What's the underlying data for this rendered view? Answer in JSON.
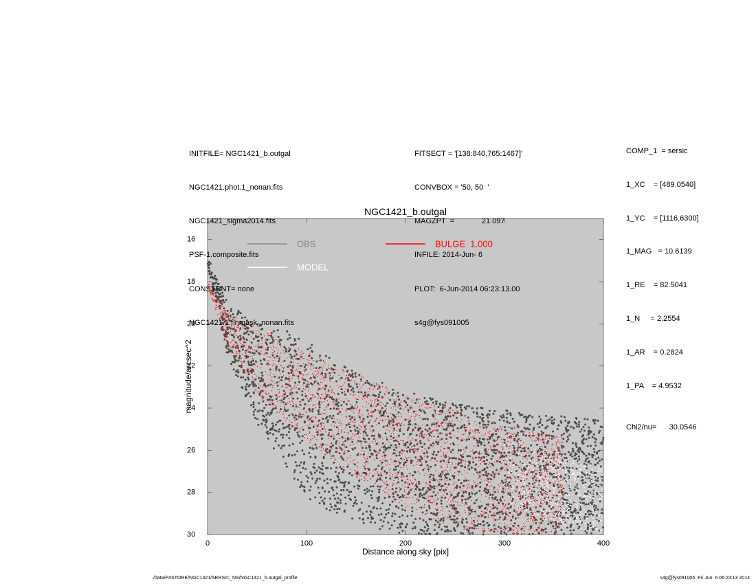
{
  "header_left": [
    "INITFILE= NGC1421_b.outgal",
    "NGC1421.phot.1_nonan.fits",
    "NGC1421_sigma2014.fits",
    "PSF-1.composite.fits",
    "CONSTRNT= none",
    "NGC1421.1.finmask_nonan.fits"
  ],
  "header_mid": [
    "FITSECT = '[138:840,765:1467]'",
    "CONVBOX = '50, 50  '",
    "MAGZPT  =             21.097",
    "INFILE: 2014-Jun- 6",
    "PLOT:  6-Jun-2014 06:23:13.00",
    "s4g@fys091005"
  ],
  "components": [
    "COMP_1  = sersic",
    "1_XC    = [489.0540]",
    "1_YC    = [1116.6300]",
    "1_MAG   = 10.6139",
    "1_RE    = 82.5041",
    "1_N     = 2.2554",
    "1_AR    = 0.2824",
    "1_PA    = 4.9532"
  ],
  "chi2": "Chi2/nu=      30.0546",
  "footer_left": "/data/P4STORE/NGC1421/SERSIC_NS/NGC1421_b.outgal_profile",
  "footer_right": "s4g@fys091005  Fri Jun  6 06:23:13 2014",
  "colors": {
    "plot_bg": "#c8c8c8",
    "obs": "#4a4a4a",
    "obs_legend": "#888888",
    "model": "#ffffff",
    "bulge": "#ff0000"
  },
  "chart_data": {
    "type": "scatter",
    "title": "NGC1421_b.outgal",
    "xlabel": "Distance along sky [pix]",
    "ylabel": "magnitude/arcsec^2",
    "xlim": [
      0,
      400
    ],
    "ylim": [
      30,
      15
    ],
    "xticks": [
      0,
      100,
      200,
      300,
      400
    ],
    "yticks": [
      16,
      18,
      20,
      22,
      24,
      26,
      28,
      30
    ],
    "legend": [
      {
        "name": "OBS",
        "color": "#888888"
      },
      {
        "name": "MODEL",
        "color": "#ffffff"
      },
      {
        "name": "BULGE  1.000",
        "color": "#ff0000"
      }
    ],
    "series": [
      {
        "name": "OBS",
        "kind": "points",
        "upper_envelope": {
          "x": [
            0,
            20,
            50,
            80,
            100,
            120,
            150,
            200,
            250,
            300,
            350,
            400
          ],
          "y": [
            16.8,
            19.0,
            20.0,
            20.3,
            20.8,
            21.5,
            22.3,
            23.2,
            23.8,
            24.1,
            24.3,
            24.6
          ]
        },
        "lower_envelope": {
          "x": [
            0,
            20,
            50,
            80,
            100,
            120,
            150,
            200,
            250,
            300,
            350,
            400
          ],
          "y": [
            17.5,
            21.5,
            24.8,
            26.8,
            28.3,
            28.8,
            29.5,
            30.0,
            30.0,
            30.0,
            30.0,
            30.0
          ]
        }
      },
      {
        "name": "BULGE  1.000",
        "kind": "points",
        "upper_envelope": {
          "x": [
            0,
            20,
            50,
            100,
            150,
            200,
            250,
            300,
            360
          ],
          "y": [
            18.0,
            19.4,
            20.2,
            21.3,
            22.4,
            23.3,
            24.1,
            24.8,
            25.4
          ]
        },
        "lower_envelope": {
          "x": [
            0,
            20,
            50,
            100,
            150,
            200,
            250,
            270
          ],
          "y": [
            18.2,
            21.0,
            23.4,
            25.6,
            27.3,
            28.7,
            29.7,
            30.0
          ]
        }
      },
      {
        "name": "MODEL",
        "kind": "points",
        "upper_envelope": {
          "x": [
            300,
            350,
            400
          ],
          "y": [
            25.5,
            26.2,
            26.8
          ]
        },
        "lower_envelope": {
          "x": [
            300,
            350,
            400
          ],
          "y": [
            28.5,
            29.5,
            30.0
          ]
        }
      }
    ]
  }
}
